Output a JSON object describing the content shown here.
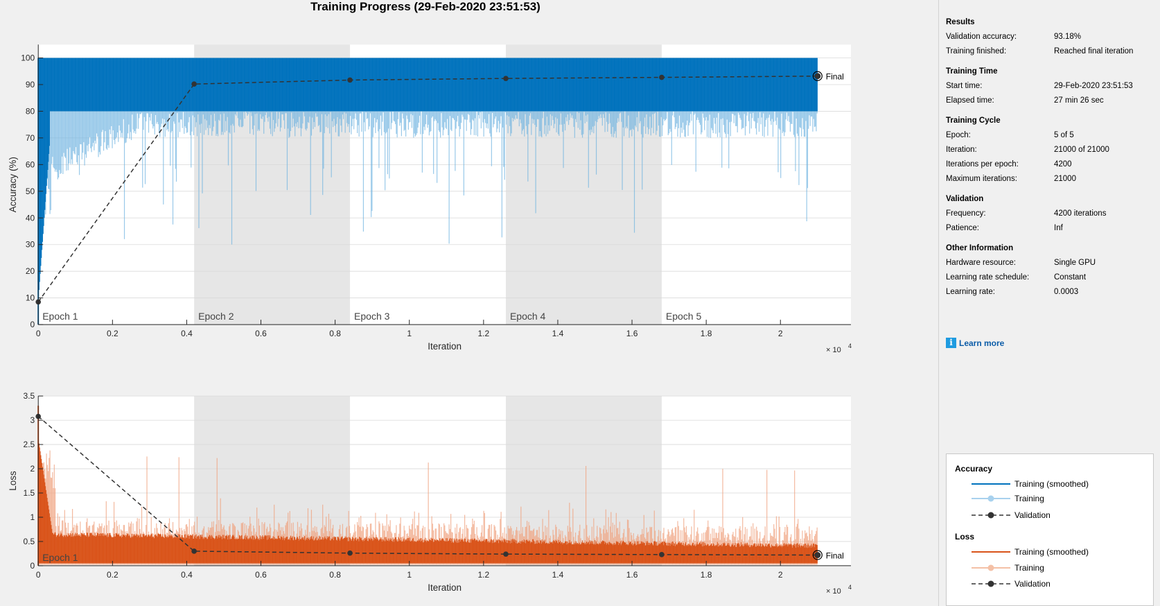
{
  "title": "Training Progress (29-Feb-2020 23:51:53)",
  "colors": {
    "accuracy_smoothed": "#0072bd",
    "accuracy_raw": "#6fb3e0",
    "loss_smoothed": "#d95319",
    "loss_raw": "#f0a27f",
    "validation": "#333333",
    "epoch_shade": "#e6e6e6"
  },
  "chart_data": [
    {
      "type": "line",
      "xlabel": "Iteration",
      "ylabel": "Accuracy (%)",
      "xlim": [
        0,
        21900
      ],
      "ylim": [
        0,
        105
      ],
      "x_ticks": [
        0,
        2000,
        4000,
        6000,
        8000,
        10000,
        12000,
        14000,
        16000,
        18000,
        20000
      ],
      "x_tick_labels": [
        "0",
        "0.2",
        "0.4",
        "0.6",
        "0.8",
        "1",
        "1.2",
        "1.4",
        "1.6",
        "1.8",
        "2"
      ],
      "x_exponent_base": "× 10",
      "x_exponent": "4",
      "y_ticks": [
        0,
        10,
        20,
        30,
        40,
        50,
        60,
        70,
        80,
        90,
        100
      ],
      "y_tick_labels": [
        "0",
        "10",
        "20",
        "30",
        "40",
        "50",
        "60",
        "70",
        "80",
        "90",
        "100"
      ],
      "grid": true,
      "epochs": [
        "Epoch 1",
        "Epoch 2",
        "Epoch 3",
        "Epoch 4",
        "Epoch 5"
      ],
      "epoch_boundaries": [
        0,
        4200,
        8400,
        12600,
        16800,
        21000
      ],
      "series": [
        {
          "name": "Training (smoothed)",
          "band": true,
          "band_low": 80,
          "band_high": 100,
          "spike_min": 30
        },
        {
          "name": "Validation",
          "x": [
            0,
            4200,
            8400,
            12600,
            16800,
            21000
          ],
          "y": [
            8.5,
            90.2,
            91.7,
            92.3,
            92.7,
            93.18
          ]
        }
      ],
      "final_label": "Final"
    },
    {
      "type": "line",
      "xlabel": "Iteration",
      "ylabel": "Loss",
      "xlim": [
        0,
        21900
      ],
      "ylim": [
        0,
        3.5
      ],
      "x_ticks": [
        0,
        2000,
        4000,
        6000,
        8000,
        10000,
        12000,
        14000,
        16000,
        18000,
        20000
      ],
      "x_tick_labels": [
        "0",
        "0.2",
        "0.4",
        "0.6",
        "0.8",
        "1",
        "1.2",
        "1.4",
        "1.6",
        "1.8",
        "2"
      ],
      "x_exponent_base": "× 10",
      "x_exponent": "4",
      "y_ticks": [
        0,
        0.5,
        1,
        1.5,
        2,
        2.5,
        3,
        3.5
      ],
      "y_tick_labels": [
        "0",
        "0.5",
        "1",
        "1.5",
        "2",
        "2.5",
        "3",
        "3.5"
      ],
      "grid": true,
      "epochs": [
        "Epoch 1"
      ],
      "epoch_boundaries": [
        0,
        4200,
        8400,
        12600,
        16800,
        21000
      ],
      "series": [
        {
          "name": "Training (smoothed)",
          "band": true,
          "band_low": 0.05,
          "band_high": 0.6,
          "spike_max": 2.3
        },
        {
          "name": "Validation",
          "x": [
            0,
            4200,
            8400,
            12600,
            16800,
            21000
          ],
          "y": [
            3.08,
            0.3,
            0.26,
            0.24,
            0.23,
            0.22
          ]
        }
      ],
      "final_label": "Final"
    }
  ],
  "panel": {
    "results": {
      "title": "Results",
      "rows": [
        {
          "label": "Validation accuracy:",
          "value": "93.18%"
        },
        {
          "label": "Training finished:",
          "value": "Reached final iteration"
        }
      ]
    },
    "time": {
      "title": "Training Time",
      "rows": [
        {
          "label": "Start time:",
          "value": "29-Feb-2020 23:51:53"
        },
        {
          "label": "Elapsed time:",
          "value": "27 min 26 sec"
        }
      ]
    },
    "cycle": {
      "title": "Training Cycle",
      "rows": [
        {
          "label": "Epoch:",
          "value": "5 of 5"
        },
        {
          "label": "Iteration:",
          "value": "21000 of 21000"
        },
        {
          "label": "Iterations per epoch:",
          "value": "4200"
        },
        {
          "label": "Maximum iterations:",
          "value": "21000"
        }
      ]
    },
    "validation": {
      "title": "Validation",
      "rows": [
        {
          "label": "Frequency:",
          "value": "4200 iterations"
        },
        {
          "label": "Patience:",
          "value": "Inf"
        }
      ]
    },
    "other": {
      "title": "Other Information",
      "rows": [
        {
          "label": "Hardware resource:",
          "value": "Single GPU"
        },
        {
          "label": "Learning rate schedule:",
          "value": "Constant"
        },
        {
          "label": "Learning rate:",
          "value": "0.0003"
        }
      ]
    },
    "learn_more": "Learn more",
    "info_icon": "i",
    "legend": {
      "accuracy_title": "Accuracy",
      "loss_title": "Loss",
      "items": {
        "smoothed": "Training (smoothed)",
        "training": "Training",
        "validation": "Validation"
      }
    }
  }
}
